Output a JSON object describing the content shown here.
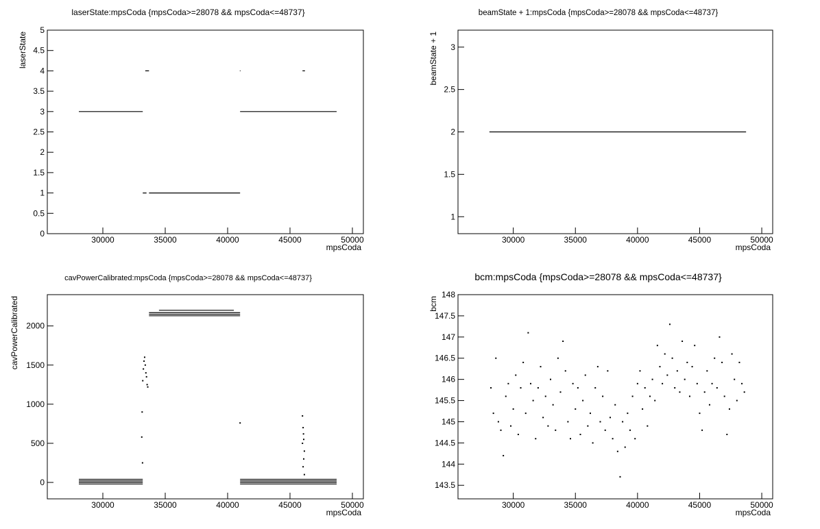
{
  "chart_data": [
    {
      "type": "line",
      "title": "laserState:mpsCoda {mpsCoda>=28078 && mpsCoda<=48737}",
      "xlabel": "mpsCoda",
      "ylabel": "laserState",
      "xlim": [
        25550,
        50880
      ],
      "xticks": [
        30000,
        35000,
        40000,
        45000,
        50000
      ],
      "ylim": [
        0,
        5
      ],
      "yticks": [
        0,
        0.5,
        1,
        1.5,
        2,
        2.5,
        3,
        3.5,
        4,
        4.5,
        5
      ],
      "series": [
        {
          "color": "#000000",
          "x": [
            28078,
            33200,
            null,
            33200,
            33500,
            null,
            33400,
            33700,
            null,
            33700,
            41000,
            null,
            40980,
            41030,
            null,
            41000,
            48737,
            null,
            46000,
            46200
          ],
          "values": [
            3,
            3,
            null,
            1,
            1,
            null,
            4,
            4,
            null,
            1,
            1,
            null,
            4,
            4,
            null,
            3,
            3,
            null,
            4,
            4
          ]
        }
      ]
    },
    {
      "type": "line",
      "title": "beamState + 1:mpsCoda {mpsCoda>=28078 && mpsCoda<=48737}",
      "xlabel": "mpsCoda",
      "ylabel": "beamState + 1",
      "xlim": [
        25550,
        50880
      ],
      "xticks": [
        30000,
        35000,
        40000,
        45000,
        50000
      ],
      "ylim": [
        0.8,
        3.2
      ],
      "yticks": [
        1,
        1.5,
        2,
        2.5,
        3
      ],
      "series": [
        {
          "color": "#000000",
          "x": [
            28078,
            48737
          ],
          "values": [
            2,
            2
          ]
        }
      ]
    },
    {
      "type": "line",
      "title": "cavPowerCalibrated:mpsCoda {mpsCoda>=28078 && mpsCoda<=48737}",
      "xlabel": "mpsCoda",
      "ylabel": "cavPowerCalibrated",
      "xlim": [
        25550,
        50880
      ],
      "xticks": [
        30000,
        35000,
        40000,
        45000,
        50000
      ],
      "ylim": [
        -210,
        2400
      ],
      "yticks": [
        0,
        500,
        1000,
        1500,
        2000
      ],
      "series": [
        {
          "color": "#000000",
          "x": [
            28078,
            33200,
            null,
            28078,
            33200,
            null,
            28078,
            33200,
            null,
            28078,
            33200,
            null,
            41000,
            48737,
            null,
            41000,
            48737,
            null,
            41000,
            48737,
            null,
            41000,
            48737,
            null,
            33700,
            41000,
            null,
            33700,
            41000,
            null,
            33700,
            41000,
            null,
            34500,
            40500
          ],
          "values": [
            -20,
            -20,
            null,
            0,
            0,
            null,
            20,
            20,
            null,
            40,
            40,
            null,
            -20,
            -20,
            null,
            0,
            0,
            null,
            20,
            20,
            null,
            40,
            40,
            null,
            2130,
            2130,
            null,
            2150,
            2150,
            null,
            2170,
            2170,
            null,
            2200,
            2200
          ]
        },
        {
          "type": "scatter",
          "color": "#000000",
          "x": [
            33120,
            33150,
            33180,
            33200,
            33250,
            33300,
            33350,
            33400,
            33450,
            33500,
            33550,
            33600,
            41000,
            46000,
            46050,
            46100,
            46150,
            46100,
            46050,
            46150,
            46000,
            46080
          ],
          "values": [
            580,
            900,
            250,
            1300,
            1450,
            1550,
            1600,
            1500,
            1400,
            1350,
            1250,
            1220,
            760,
            850,
            700,
            550,
            400,
            300,
            200,
            100,
            500,
            620
          ]
        }
      ]
    },
    {
      "type": "scatter",
      "title": "bcm:mpsCoda {mpsCoda>=28078 && mpsCoda<=48737}",
      "xlabel": "mpsCoda",
      "ylabel": "bcm",
      "xlim": [
        25550,
        50880
      ],
      "xticks": [
        30000,
        35000,
        40000,
        45000,
        50000
      ],
      "ylim": [
        143.18,
        148
      ],
      "yticks": [
        143.5,
        144,
        144.5,
        145,
        145.5,
        146,
        146.5,
        147,
        147.5,
        148
      ],
      "series": [
        {
          "color": "#000000",
          "x": [
            28200,
            28400,
            28600,
            28800,
            29000,
            29200,
            29400,
            29600,
            29800,
            30000,
            30200,
            30400,
            30600,
            30800,
            31000,
            31200,
            31400,
            31600,
            31800,
            32000,
            32200,
            32400,
            32600,
            32800,
            33000,
            33200,
            33400,
            33600,
            33800,
            34000,
            34200,
            34400,
            34600,
            34800,
            35000,
            35200,
            35400,
            35600,
            35800,
            36000,
            36200,
            36400,
            36600,
            36800,
            37000,
            37200,
            37400,
            37600,
            37800,
            38000,
            38200,
            38400,
            38600,
            38800,
            39000,
            39200,
            39400,
            39600,
            39800,
            40000,
            40200,
            40400,
            40600,
            40800,
            41000,
            41200,
            41400,
            41600,
            41800,
            42000,
            42200,
            42400,
            42600,
            42800,
            43000,
            43200,
            43400,
            43600,
            43800,
            44000,
            44200,
            44400,
            44600,
            44800,
            45000,
            45200,
            45400,
            45600,
            45800,
            46000,
            46200,
            46400,
            46600,
            46800,
            47000,
            47200,
            47400,
            47600,
            47800,
            48000,
            48200,
            48400,
            48600
          ],
          "values": [
            145.8,
            145.2,
            146.5,
            145.0,
            144.8,
            144.2,
            145.6,
            145.9,
            144.9,
            145.3,
            146.1,
            144.7,
            145.8,
            146.4,
            145.2,
            147.1,
            145.9,
            145.5,
            144.6,
            145.8,
            146.3,
            145.1,
            145.6,
            144.9,
            146.0,
            145.4,
            144.8,
            146.5,
            145.7,
            146.9,
            146.2,
            145.0,
            144.6,
            145.9,
            145.3,
            145.8,
            144.7,
            145.5,
            146.1,
            144.9,
            145.2,
            144.5,
            145.8,
            146.3,
            145.0,
            145.6,
            144.8,
            146.2,
            145.1,
            144.6,
            145.4,
            144.3,
            143.7,
            145.0,
            144.4,
            145.2,
            144.8,
            145.6,
            144.6,
            145.9,
            146.2,
            145.3,
            145.8,
            144.9,
            145.6,
            146.0,
            145.5,
            146.8,
            146.3,
            145.9,
            146.6,
            146.1,
            147.3,
            146.5,
            145.8,
            146.2,
            145.7,
            146.9,
            146.0,
            146.4,
            145.6,
            146.3,
            146.8,
            145.9,
            145.2,
            144.8,
            145.7,
            146.2,
            145.4,
            145.9,
            146.5,
            145.8,
            147.0,
            146.4,
            145.6,
            144.7,
            145.3,
            146.6,
            146.0,
            145.5,
            146.4,
            145.9,
            145.7
          ]
        }
      ]
    }
  ]
}
